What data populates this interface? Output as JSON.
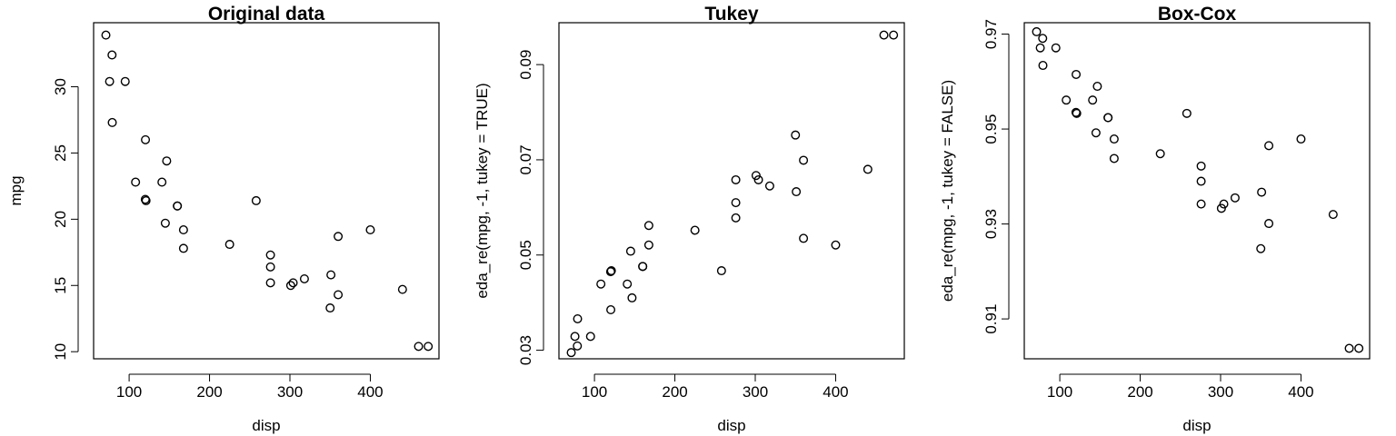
{
  "chart_data": [
    {
      "type": "scatter",
      "title": "Original data",
      "xlabel": "disp",
      "ylabel": "mpg",
      "xlim": [
        55.81,
        485.39
      ],
      "ylim": [
        9.464,
        34.836
      ],
      "xticks": [
        100,
        200,
        300,
        400
      ],
      "yticks": [
        10,
        15,
        20,
        25,
        30
      ],
      "tick_labels_x": [
        "100",
        "200",
        "300",
        "400"
      ],
      "tick_labels_y": [
        "10",
        "15",
        "20",
        "25",
        "30"
      ],
      "x": [
        160,
        160,
        108,
        258,
        360,
        225,
        360,
        146.7,
        140.8,
        167.6,
        167.6,
        275.8,
        275.8,
        275.8,
        472,
        460,
        440,
        78.7,
        75.7,
        71.1,
        120.1,
        318,
        304,
        350,
        400,
        79,
        120.3,
        95.1,
        351,
        145,
        301,
        121
      ],
      "y": [
        21.0,
        21.0,
        22.8,
        21.4,
        18.7,
        18.1,
        14.3,
        24.4,
        22.8,
        19.2,
        17.8,
        16.4,
        17.3,
        15.2,
        10.4,
        10.4,
        14.7,
        32.4,
        30.4,
        33.9,
        21.5,
        15.5,
        15.2,
        13.3,
        19.2,
        27.3,
        26.0,
        30.4,
        15.8,
        19.7,
        15.0,
        21.4
      ]
    },
    {
      "type": "scatter",
      "title": "Tukey",
      "xlabel": "disp",
      "ylabel": "eda_re(mpg, -1, tukey = TRUE)",
      "xlim": [
        55.81,
        485.39
      ],
      "ylim": [
        0.0282,
        0.0988
      ],
      "xticks": [
        100,
        200,
        300,
        400
      ],
      "yticks": [
        0.03,
        0.05,
        0.07,
        0.09
      ],
      "tick_labels_x": [
        "100",
        "200",
        "300",
        "400"
      ],
      "tick_labels_y": [
        "0.03",
        "0.05",
        "0.07",
        "0.09"
      ],
      "x": [
        160,
        160,
        108,
        258,
        360,
        225,
        360,
        146.7,
        140.8,
        167.6,
        167.6,
        275.8,
        275.8,
        275.8,
        472,
        460,
        440,
        78.7,
        75.7,
        71.1,
        120.1,
        318,
        304,
        350,
        400,
        79,
        120.3,
        95.1,
        351,
        145,
        301,
        121
      ],
      "y": [
        0.0476,
        0.0476,
        0.0439,
        0.0467,
        0.0535,
        0.0552,
        0.0699,
        0.041,
        0.0439,
        0.0521,
        0.0562,
        0.061,
        0.0578,
        0.0658,
        0.0962,
        0.0962,
        0.068,
        0.0309,
        0.0329,
        0.0295,
        0.0465,
        0.0645,
        0.0658,
        0.0752,
        0.0521,
        0.0366,
        0.0385,
        0.0329,
        0.0633,
        0.0508,
        0.0667,
        0.0467
      ]
    },
    {
      "type": "scatter",
      "title": "Box-Cox",
      "xlabel": "disp",
      "ylabel": "eda_re(mpg, -1, tukey = FALSE)",
      "xlim": [
        55.81,
        485.39
      ],
      "ylim": [
        0.9016,
        0.9724
      ],
      "xticks": [
        100,
        200,
        300,
        400
      ],
      "yticks": [
        0.91,
        0.93,
        0.95,
        0.97
      ],
      "tick_labels_x": [
        "100",
        "200",
        "300",
        "400"
      ],
      "tick_labels_y": [
        "0.91",
        "0.93",
        "0.95",
        "0.97"
      ],
      "x": [
        160,
        160,
        108,
        258,
        360,
        225,
        360,
        146.7,
        140.8,
        167.6,
        167.6,
        275.8,
        275.8,
        275.8,
        472,
        460,
        440,
        78.7,
        75.7,
        71.1,
        120.1,
        318,
        304,
        350,
        400,
        79,
        120.3,
        95.1,
        351,
        145,
        301,
        121
      ],
      "y": [
        0.9524,
        0.9524,
        0.9561,
        0.9533,
        0.9465,
        0.9448,
        0.9301,
        0.959,
        0.9561,
        0.9479,
        0.9438,
        0.939,
        0.9422,
        0.9342,
        0.9038,
        0.9038,
        0.932,
        0.9691,
        0.9671,
        0.9705,
        0.9535,
        0.9355,
        0.9342,
        0.9248,
        0.9479,
        0.9634,
        0.9615,
        0.9671,
        0.9367,
        0.9492,
        0.9333,
        0.9533
      ]
    }
  ]
}
